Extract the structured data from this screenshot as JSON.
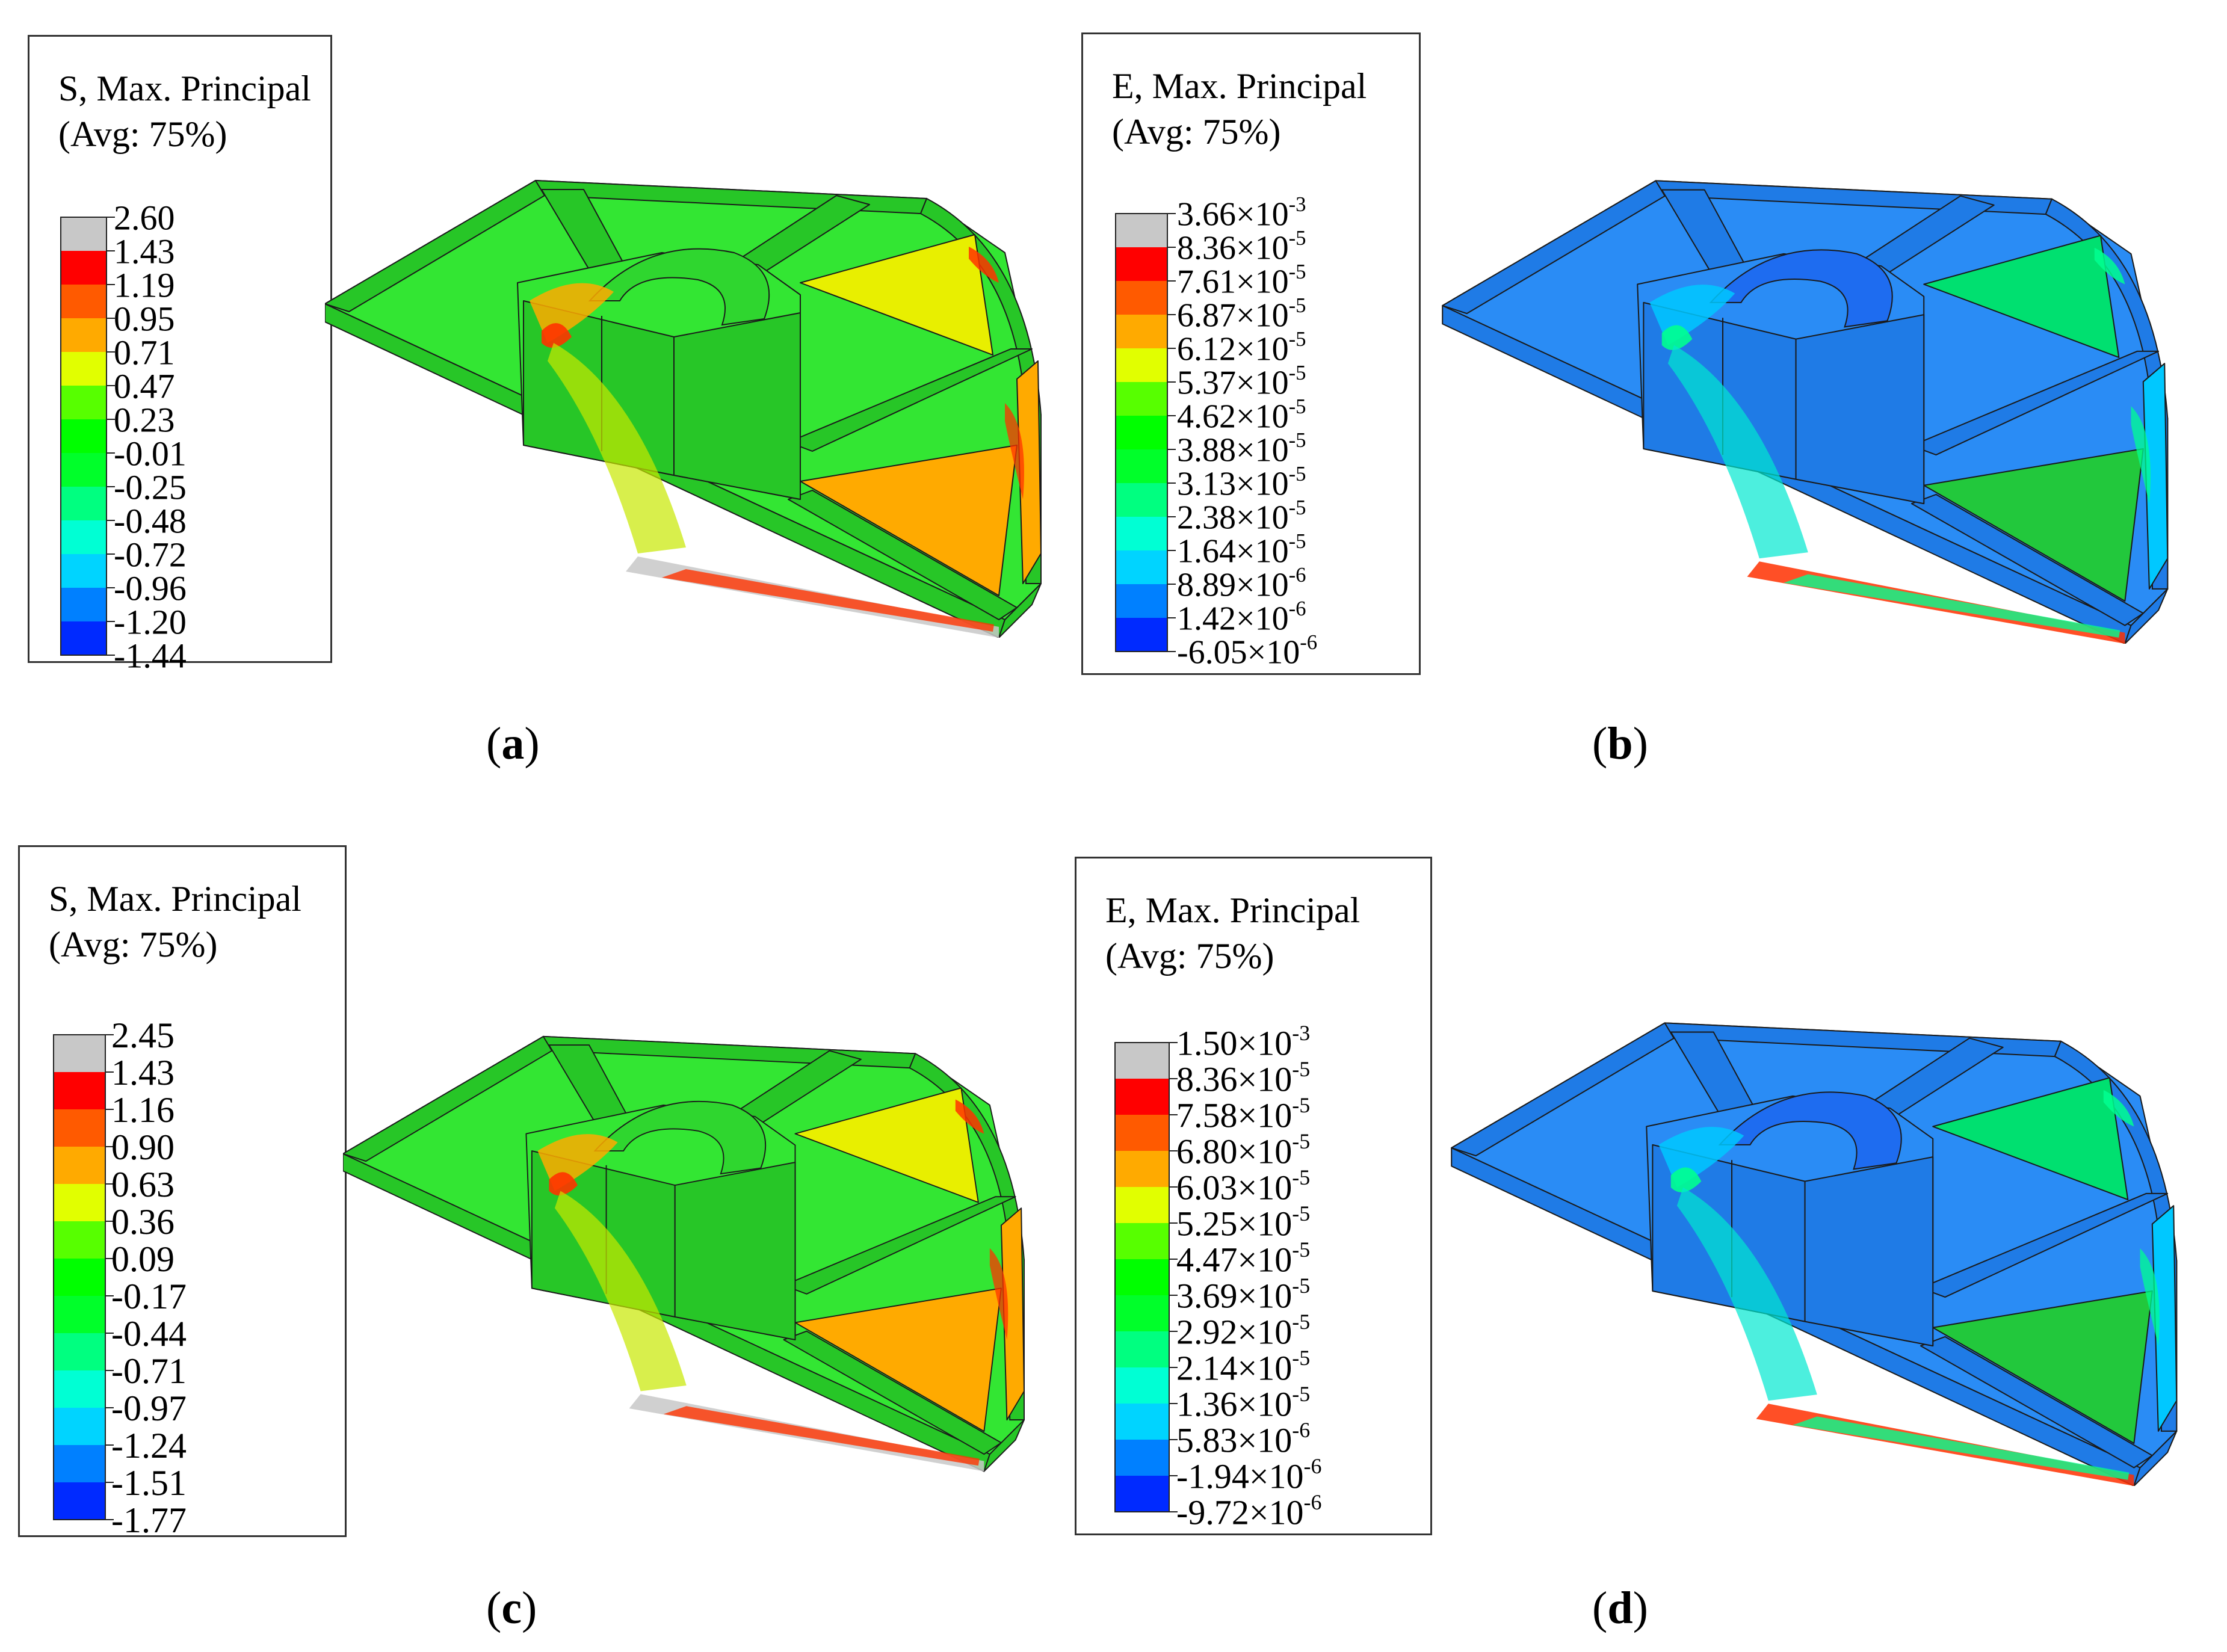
{
  "panels": [
    {
      "id": "a",
      "caption": "a",
      "legend": {
        "title_line1": "S, Max. Principal",
        "title_line2": "(Avg: 75%)",
        "values": [
          "2.60",
          "1.43",
          "1.19",
          "0.95",
          "0.71",
          "0.47",
          "0.23",
          "-0.01",
          "-0.25",
          "-0.48",
          "-0.72",
          "-0.96",
          "-1.20",
          "-1.44"
        ],
        "exponents": []
      },
      "palette": "stress-a"
    },
    {
      "id": "b",
      "caption": "b",
      "legend": {
        "title_line1": "E, Max. Principal",
        "title_line2": "(Avg: 75%)",
        "values": [
          "3.66×10",
          "8.36×10",
          "7.61×10",
          "6.87×10",
          "6.12×10",
          "5.37×10",
          "4.62×10",
          "3.88×10",
          "3.13×10",
          "2.38×10",
          "1.64×10",
          "8.89×10",
          "1.42×10",
          "-6.05×10"
        ],
        "exponents": [
          "-3",
          "-5",
          "-5",
          "-5",
          "-5",
          "-5",
          "-5",
          "-5",
          "-5",
          "-5",
          "-5",
          "-6",
          "-6",
          "-6"
        ]
      },
      "palette": "strain"
    },
    {
      "id": "c",
      "caption": "c",
      "legend": {
        "title_line1": "S, Max. Principal",
        "title_line2": "(Avg: 75%)",
        "values": [
          "2.45",
          "1.43",
          "1.16",
          "0.90",
          "0.63",
          "0.36",
          "0.09",
          "-0.17",
          "-0.44",
          "-0.71",
          "-0.97",
          "-1.24",
          "-1.51",
          "-1.77"
        ],
        "exponents": []
      },
      "palette": "stress-c"
    },
    {
      "id": "d",
      "caption": "d",
      "legend": {
        "title_line1": "E, Max. Principal",
        "title_line2": "(Avg: 75%)",
        "values": [
          "1.50×10",
          "8.36×10",
          "7.58×10",
          "6.80×10",
          "6.03×10",
          "5.25×10",
          "4.47×10",
          "3.69×10",
          "2.92×10",
          "2.14×10",
          "1.36×10",
          "5.83×10",
          "-1.94×10",
          "-9.72×10"
        ],
        "exponents": [
          "-3",
          "-5",
          "-5",
          "-5",
          "-5",
          "-5",
          "-5",
          "-5",
          "-5",
          "-5",
          "-5",
          "-6",
          "-6",
          "-6"
        ]
      },
      "palette": "strain"
    }
  ],
  "colors": {
    "scale": [
      "#c8c8c8",
      "#ff0000",
      "#ff5a00",
      "#ffaa00",
      "#e1ff00",
      "#57ff00",
      "#00ff00",
      "#00ff2a",
      "#00ff80",
      "#00ffd4",
      "#00d4ff",
      "#0080ff",
      "#002aff",
      "#0000ff"
    ]
  }
}
